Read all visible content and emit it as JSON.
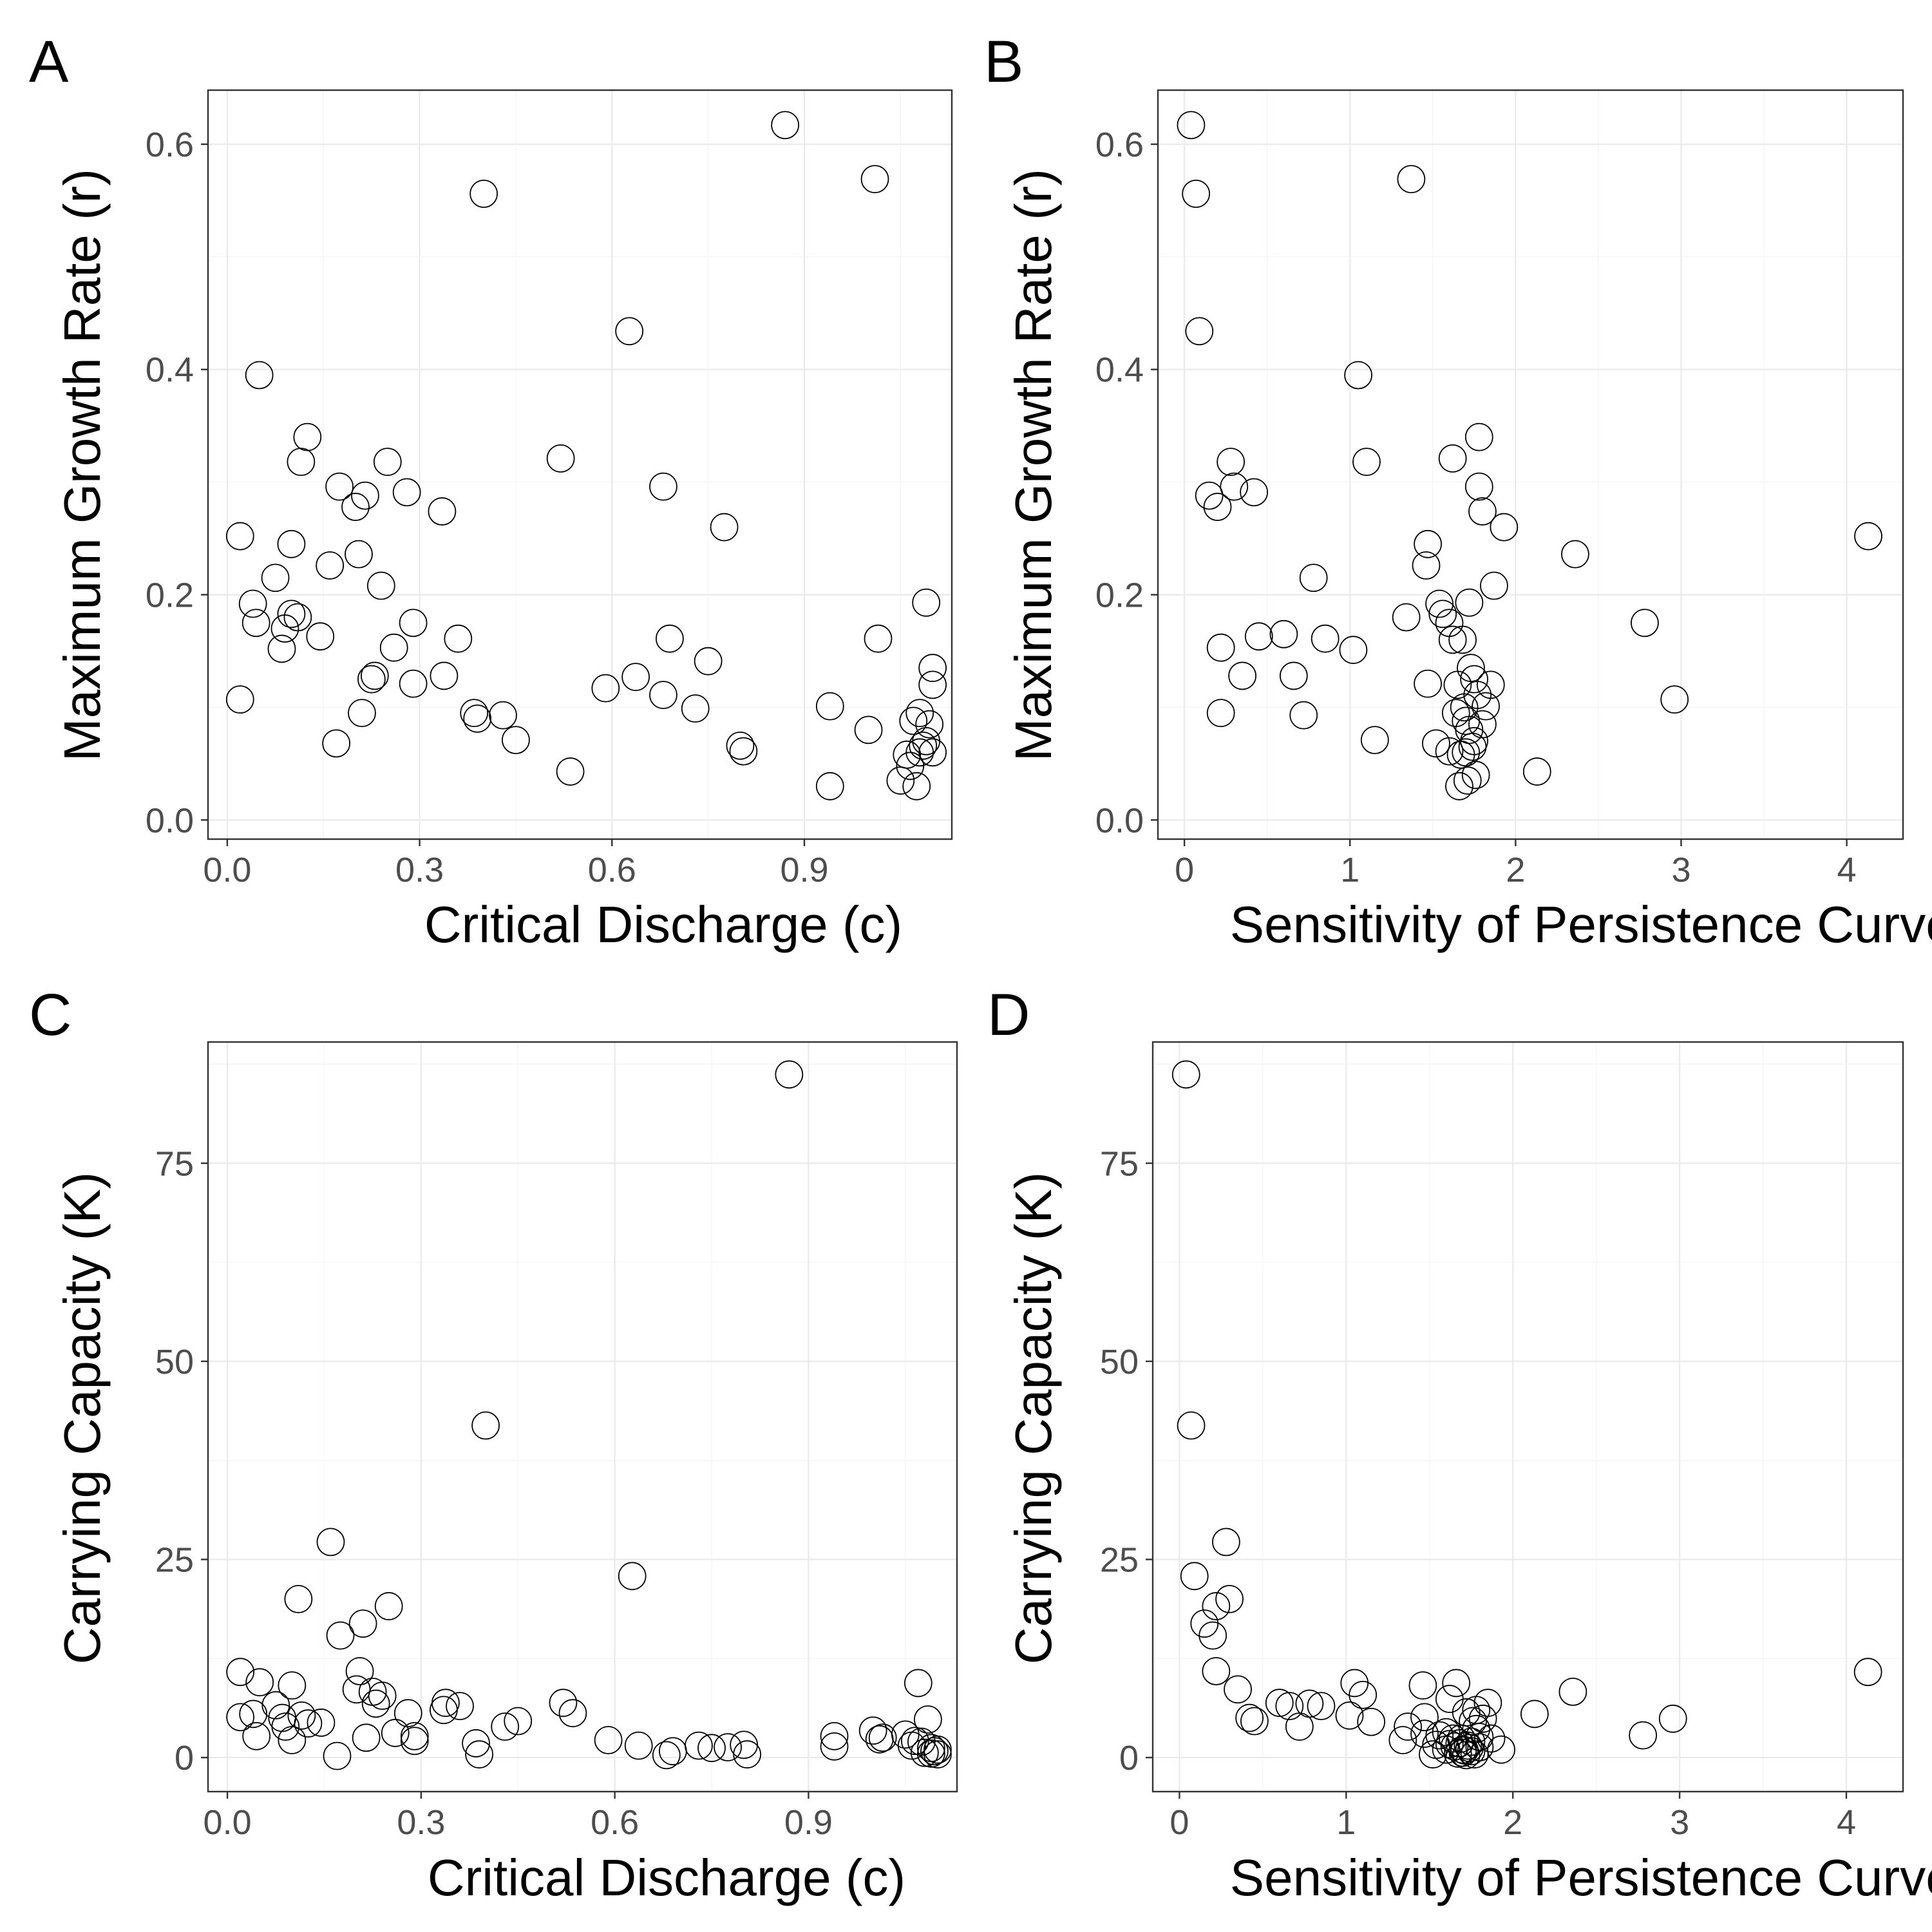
{
  "chart_data": [
    {
      "panel": "A",
      "type": "scatter",
      "xlabel": "Critical Discharge (c)",
      "ylabel": "Maximum Growth Rate (r)",
      "xlim": [
        -0.03,
        1.13
      ],
      "ylim": [
        -0.017,
        0.648
      ],
      "xticks": [
        0.0,
        0.3,
        0.6,
        0.9
      ],
      "xtick_labels": [
        "0.0",
        "0.3",
        "0.6",
        "0.9"
      ],
      "yticks": [
        0.0,
        0.2,
        0.4,
        0.6
      ],
      "ytick_labels": [
        "0.0",
        "0.2",
        "0.4",
        "0.6"
      ],
      "grid": true,
      "x": [
        0.02,
        0.02,
        0.04,
        0.045,
        0.05,
        0.075,
        0.085,
        0.09,
        0.1,
        0.1,
        0.11,
        0.115,
        0.125,
        0.145,
        0.16,
        0.17,
        0.175,
        0.2,
        0.205,
        0.21,
        0.215,
        0.225,
        0.23,
        0.24,
        0.25,
        0.26,
        0.28,
        0.29,
        0.29,
        0.335,
        0.338,
        0.36,
        0.385,
        0.39,
        0.4,
        0.43,
        0.45,
        0.52,
        0.535,
        0.59,
        0.627,
        0.637,
        0.68,
        0.68,
        0.69,
        0.73,
        0.75,
        0.775,
        0.8,
        0.805,
        0.87,
        0.94,
        0.94,
        1.0,
        1.01,
        1.015,
        1.05,
        1.06,
        1.065,
        1.07,
        1.075,
        1.08,
        1.08,
        1.085,
        1.09,
        1.09,
        1.095,
        1.1,
        1.1,
        1.1
      ],
      "y": [
        0.252,
        0.107,
        0.192,
        0.175,
        0.395,
        0.215,
        0.152,
        0.17,
        0.183,
        0.245,
        0.18,
        0.318,
        0.34,
        0.163,
        0.226,
        0.068,
        0.296,
        0.278,
        0.236,
        0.095,
        0.288,
        0.125,
        0.128,
        0.208,
        0.318,
        0.153,
        0.291,
        0.175,
        0.121,
        0.274,
        0.128,
        0.161,
        0.095,
        0.09,
        0.556,
        0.093,
        0.071,
        0.321,
        0.043,
        0.117,
        0.434,
        0.127,
        0.296,
        0.111,
        0.161,
        0.099,
        0.141,
        0.26,
        0.066,
        0.061,
        0.617,
        0.101,
        0.03,
        0.08,
        0.569,
        0.161,
        0.035,
        0.058,
        0.048,
        0.088,
        0.03,
        0.06,
        0.095,
        0.066,
        0.193,
        0.07,
        0.085,
        0.135,
        0.12,
        0.06
      ]
    },
    {
      "panel": "B",
      "type": "scatter",
      "xlabel": "Sensitivity of Persistence Curve (s)",
      "ylabel": "Maximum Growth Rate (r)",
      "xlim": [
        -0.16,
        4.34
      ],
      "ylim": [
        -0.017,
        0.648
      ],
      "xticks": [
        0,
        1,
        2,
        3,
        4
      ],
      "xtick_labels": [
        "0",
        "1",
        "2",
        "3",
        "4"
      ],
      "yticks": [
        0.0,
        0.2,
        0.4,
        0.6
      ],
      "ytick_labels": [
        "0.0",
        "0.2",
        "0.4",
        "0.6"
      ],
      "grid": true,
      "x": [
        0.04,
        0.07,
        0.09,
        0.15,
        0.2,
        0.22,
        0.22,
        0.28,
        0.3,
        0.35,
        0.42,
        0.45,
        0.6,
        0.66,
        0.72,
        0.78,
        0.85,
        1.02,
        1.05,
        1.1,
        1.15,
        1.34,
        1.37,
        1.46,
        1.47,
        1.47,
        1.52,
        1.54,
        1.56,
        1.6,
        1.6,
        1.62,
        1.62,
        1.64,
        1.65,
        1.66,
        1.67,
        1.68,
        1.69,
        1.7,
        1.7,
        1.71,
        1.72,
        1.72,
        1.73,
        1.74,
        1.75,
        1.75,
        1.76,
        1.77,
        1.78,
        1.78,
        1.8,
        1.8,
        1.82,
        1.85,
        1.87,
        1.93,
        2.13,
        2.36,
        2.78,
        2.96,
        4.13
      ],
      "y": [
        0.617,
        0.556,
        0.434,
        0.288,
        0.278,
        0.153,
        0.095,
        0.318,
        0.296,
        0.128,
        0.291,
        0.163,
        0.165,
        0.128,
        0.093,
        0.215,
        0.161,
        0.151,
        0.395,
        0.318,
        0.071,
        0.18,
        0.569,
        0.226,
        0.245,
        0.121,
        0.068,
        0.192,
        0.183,
        0.175,
        0.061,
        0.321,
        0.16,
        0.095,
        0.12,
        0.03,
        0.058,
        0.16,
        0.1,
        0.088,
        0.06,
        0.035,
        0.193,
        0.08,
        0.135,
        0.065,
        0.07,
        0.125,
        0.04,
        0.111,
        0.34,
        0.296,
        0.274,
        0.085,
        0.101,
        0.12,
        0.208,
        0.26,
        0.043,
        0.236,
        0.175,
        0.107,
        0.252
      ]
    },
    {
      "panel": "C",
      "type": "scatter",
      "xlabel": "Critical Discharge (c)",
      "ylabel": "Carrying Capacity (K)",
      "xlim": [
        -0.03,
        1.13
      ],
      "ylim": [
        -4.3,
        90.3
      ],
      "xticks": [
        0.0,
        0.3,
        0.6,
        0.9
      ],
      "xtick_labels": [
        "0.0",
        "0.3",
        "0.6",
        "0.9"
      ],
      "yticks": [
        0,
        25,
        50,
        75
      ],
      "ytick_labels": [
        "0",
        "25",
        "50",
        "75"
      ],
      "grid": true,
      "x": [
        0.02,
        0.02,
        0.04,
        0.045,
        0.05,
        0.075,
        0.085,
        0.09,
        0.1,
        0.1,
        0.11,
        0.115,
        0.125,
        0.145,
        0.16,
        0.17,
        0.175,
        0.2,
        0.205,
        0.21,
        0.215,
        0.225,
        0.23,
        0.24,
        0.25,
        0.26,
        0.28,
        0.29,
        0.29,
        0.335,
        0.338,
        0.36,
        0.385,
        0.39,
        0.4,
        0.43,
        0.45,
        0.52,
        0.535,
        0.59,
        0.627,
        0.637,
        0.68,
        0.69,
        0.73,
        0.75,
        0.775,
        0.8,
        0.805,
        0.87,
        0.94,
        0.94,
        1.0,
        1.01,
        1.015,
        1.05,
        1.06,
        1.065,
        1.07,
        1.075,
        1.08,
        1.085,
        1.09,
        1.09,
        1.095,
        1.1,
        1.1
      ],
      "y": [
        10.8,
        5.1,
        5.5,
        2.7,
        9.5,
        6.6,
        5.0,
        3.9,
        9.1,
        2.2,
        20.0,
        5.3,
        4.3,
        4.4,
        27.2,
        0.2,
        15.4,
        8.6,
        10.9,
        16.9,
        2.5,
        8.3,
        6.8,
        7.8,
        19.1,
        3.1,
        5.6,
        2.7,
        2.1,
        6.0,
        6.9,
        6.5,
        1.8,
        0.4,
        41.9,
        3.9,
        4.6,
        6.9,
        5.6,
        2.2,
        22.9,
        1.5,
        0.3,
        0.8,
        1.5,
        1.2,
        1.3,
        1.6,
        0.4,
        86.2,
        2.7,
        1.4,
        3.4,
        2.3,
        2.5,
        2.9,
        1.5,
        2.1,
        9.4,
        2.0,
        0.6,
        4.8,
        1.2,
        0.5,
        0.8,
        1.0,
        0.4
      ]
    },
    {
      "panel": "D",
      "type": "scatter",
      "xlabel": "Sensitivity of Persistence Curve (s)",
      "ylabel": "Carrying Capacity (K)",
      "xlim": [
        -0.16,
        4.34
      ],
      "ylim": [
        -4.3,
        90.3
      ],
      "xticks": [
        0,
        1,
        2,
        3,
        4
      ],
      "xtick_labels": [
        "0",
        "1",
        "2",
        "3",
        "4"
      ],
      "yticks": [
        0,
        25,
        50,
        75
      ],
      "ytick_labels": [
        "0",
        "25",
        "50",
        "75"
      ],
      "grid": true,
      "x": [
        0.04,
        0.07,
        0.09,
        0.15,
        0.2,
        0.22,
        0.22,
        0.28,
        0.3,
        0.35,
        0.42,
        0.45,
        0.6,
        0.66,
        0.72,
        0.78,
        0.85,
        1.02,
        1.05,
        1.1,
        1.15,
        1.34,
        1.37,
        1.46,
        1.47,
        1.47,
        1.52,
        1.54,
        1.56,
        1.6,
        1.6,
        1.62,
        1.62,
        1.64,
        1.65,
        1.66,
        1.67,
        1.68,
        1.69,
        1.7,
        1.7,
        1.71,
        1.72,
        1.72,
        1.73,
        1.74,
        1.75,
        1.75,
        1.76,
        1.77,
        1.78,
        1.78,
        1.8,
        1.8,
        1.82,
        1.85,
        1.87,
        1.93,
        2.13,
        2.36,
        2.78,
        2.96,
        4.13
      ],
      "y": [
        86.2,
        41.9,
        22.9,
        16.9,
        15.4,
        10.9,
        19.1,
        27.2,
        20.0,
        8.6,
        5.0,
        4.6,
        6.9,
        6.5,
        3.9,
        6.8,
        6.5,
        5.3,
        9.4,
        7.9,
        4.5,
        2.2,
        3.9,
        9.1,
        5.1,
        3.0,
        0.4,
        1.6,
        2.8,
        3.2,
        1.0,
        7.4,
        1.7,
        2.4,
        1.4,
        9.4,
        0.5,
        1.8,
        2.4,
        1.0,
        0.6,
        0.9,
        5.7,
        0.3,
        1.5,
        1.2,
        2.0,
        0.8,
        4.6,
        0.4,
        6.0,
        3.6,
        1.3,
        2.6,
        4.9,
        6.9,
        2.4,
        1.0,
        5.5,
        8.3,
        2.8,
        4.9,
        10.8
      ]
    }
  ]
}
